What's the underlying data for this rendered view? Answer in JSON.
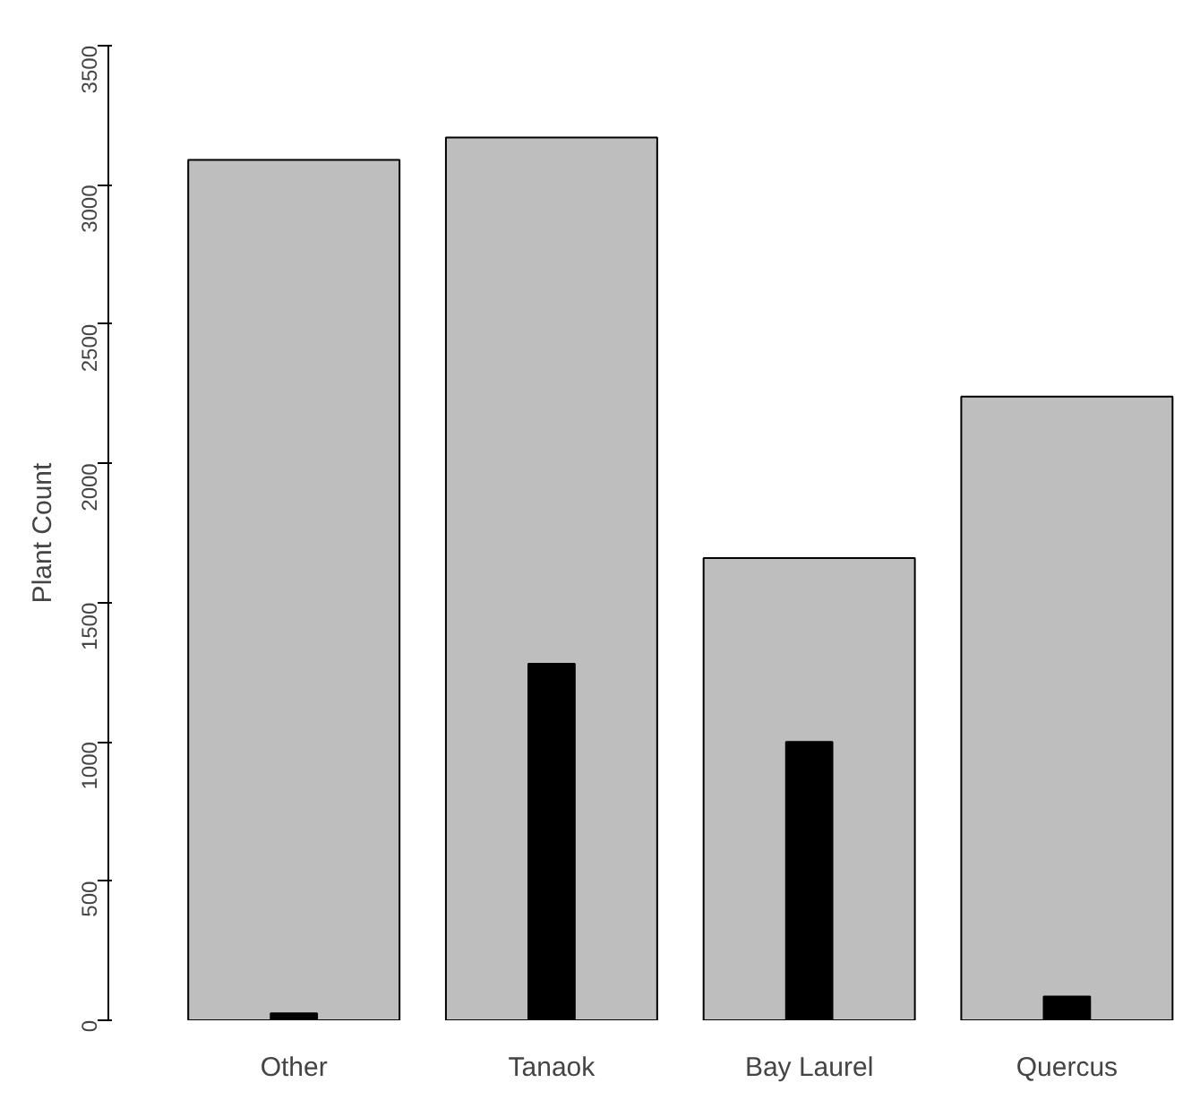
{
  "chart_data": {
    "type": "bar",
    "ylabel": "Plant Count",
    "categories": [
      "Other",
      "Tanaok",
      "Bay Laurel",
      "Quercus"
    ],
    "series": [
      {
        "color": "#bebebe",
        "values": [
          3090,
          3170,
          1660,
          2240
        ]
      },
      {
        "color": "#000000",
        "values": [
          25,
          1280,
          1000,
          85
        ]
      }
    ],
    "ylim": [
      0,
      3500
    ],
    "yticks": [
      0,
      500,
      1000,
      1500,
      2000,
      2500,
      3000,
      3500
    ],
    "grid": false
  }
}
